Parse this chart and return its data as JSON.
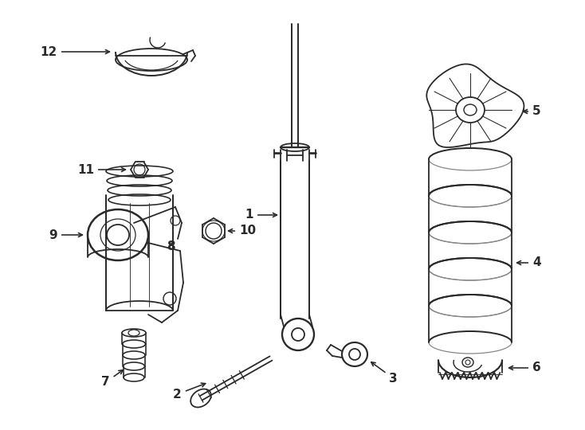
{
  "bg_color": "#ffffff",
  "line_color": "#2a2a2a",
  "lw": 1.3,
  "fig_w": 7.34,
  "fig_h": 5.4,
  "dpi": 100
}
